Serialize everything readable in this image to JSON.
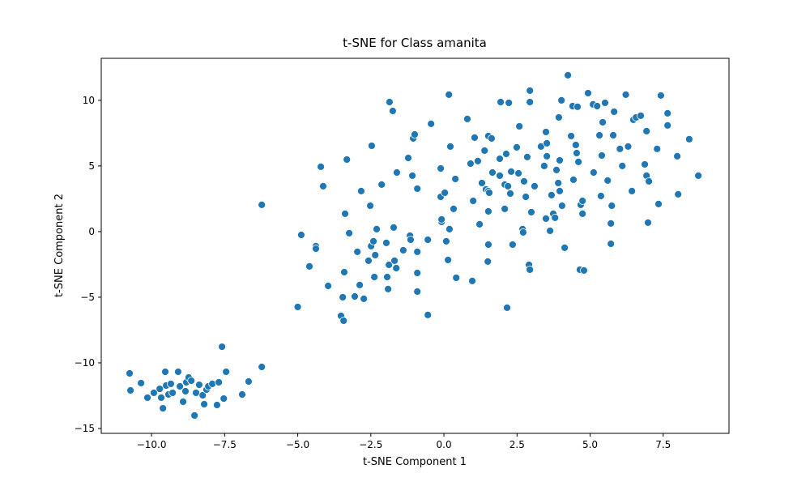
{
  "chart_data": {
    "type": "scatter",
    "title": "t-SNE for Class amanita",
    "x_label": "t-SNE Component 1",
    "y_label": "t-SNE Component 2",
    "xlim": [
      -11.72,
      9.75
    ],
    "ylim": [
      -15.37,
      13.2
    ],
    "xticks": [
      {
        "value": -10,
        "label": "−10.0"
      },
      {
        "value": -7.5,
        "label": "−7.5"
      },
      {
        "value": -5,
        "label": "−5.0"
      },
      {
        "value": -2.5,
        "label": "−2.5"
      },
      {
        "value": 0,
        "label": "0.0"
      },
      {
        "value": 2.5,
        "label": "2.5"
      },
      {
        "value": 5,
        "label": "5.0"
      },
      {
        "value": 7.5,
        "label": "7.5"
      }
    ],
    "yticks": [
      {
        "value": -15,
        "label": "−15"
      },
      {
        "value": -10,
        "label": "−10"
      },
      {
        "value": -5,
        "label": "−5"
      },
      0,
      5,
      10
    ],
    "grid": false,
    "series": [
      {
        "color": "#1f77b4",
        "x": [
          -10.75,
          -10.72,
          -10.36,
          -10.14,
          -9.92,
          -9.72,
          -9.67,
          -9.61,
          -9.53,
          -9.5,
          -9.42,
          -9.34,
          -9.28,
          -9.09,
          -9.03,
          -8.92,
          -8.84,
          -8.81,
          -8.73,
          -8.64,
          -8.53,
          -8.48,
          -8.37,
          -8.25,
          -8.2,
          -8.12,
          -8.06,
          -7.92,
          -7.76,
          -7.7,
          -7.59,
          -7.53,
          -7.45,
          -6.9,
          -6.68,
          -6.23,
          -6.23,
          -4.88,
          -5.0,
          -4.6,
          -4.38,
          -4.38,
          -4.21,
          -4.13,
          -3.96,
          -3.52,
          -3.43,
          -3.46,
          -3.41,
          -3.38,
          -3.32,
          -3.24,
          -3.05,
          -2.96,
          -2.88,
          -2.83,
          -2.74,
          -2.58,
          -2.52,
          -2.49,
          -2.47,
          -2.41,
          -2.38,
          -2.35,
          -2.3,
          -2.13,
          -1.97,
          -1.94,
          -1.91,
          -1.88,
          -1.86,
          -1.75,
          -1.72,
          -1.69,
          -1.63,
          -1.61,
          -1.39,
          -1.22,
          -1.16,
          -1.14,
          -1.08,
          -1.05,
          -1.0,
          -0.91,
          -0.91,
          -0.91,
          -0.91,
          -0.55,
          -0.55,
          -0.44,
          -0.11,
          -0.11,
          -0.08,
          -0.08,
          0.03,
          0.08,
          0.14,
          0.17,
          0.19,
          0.22,
          0.33,
          0.39,
          0.42,
          0.8,
          0.91,
          0.97,
          1.0,
          1.05,
          1.16,
          1.22,
          1.3,
          1.39,
          1.44,
          1.52,
          1.52,
          1.52,
          1.52,
          1.5,
          1.55,
          1.63,
          1.66,
          1.91,
          1.94,
          1.91,
          2.08,
          2.08,
          2.13,
          2.19,
          2.16,
          2.22,
          2.27,
          2.3,
          2.35,
          2.49,
          2.55,
          2.58,
          2.69,
          2.71,
          2.74,
          2.8,
          2.85,
          2.91,
          2.94,
          2.94,
          2.94,
          2.99,
          3.1,
          3.32,
          3.43,
          3.49,
          3.49,
          3.52,
          3.52,
          3.63,
          3.68,
          3.74,
          3.8,
          3.85,
          3.91,
          3.93,
          3.96,
          3.96,
          4.02,
          4.04,
          4.13,
          4.24,
          4.35,
          4.4,
          4.43,
          4.51,
          4.57,
          4.54,
          4.6,
          4.65,
          4.68,
          4.74,
          4.74,
          4.79,
          4.93,
          5.12,
          5.1,
          5.24,
          5.32,
          5.37,
          5.4,
          5.43,
          5.51,
          5.6,
          5.71,
          5.71,
          5.74,
          5.79,
          5.82,
          6.02,
          6.1,
          6.22,
          6.3,
          6.43,
          6.48,
          6.57,
          6.73,
          6.87,
          6.93,
          6.93,
          6.98,
          7.01,
          7.29,
          7.34,
          7.42,
          7.65,
          7.65,
          7.98,
          8.01,
          8.39,
          8.7
        ],
        "values": [
          -10.8,
          -12.1,
          -11.54,
          -12.65,
          -12.28,
          -11.98,
          -12.65,
          -13.46,
          -10.68,
          -11.73,
          -12.41,
          -11.6,
          -12.28,
          -10.68,
          -11.79,
          -12.96,
          -12.16,
          -11.48,
          -11.11,
          -11.36,
          -14.01,
          -12.28,
          -11.67,
          -12.47,
          -13.15,
          -12.04,
          -11.79,
          -11.6,
          -13.21,
          -11.48,
          -8.77,
          -12.72,
          -10.68,
          -12.41,
          -11.42,
          -10.31,
          2.04,
          -0.25,
          -5.74,
          -2.65,
          -1.11,
          -1.3,
          4.94,
          3.46,
          -4.14,
          -6.42,
          -6.79,
          -5.0,
          -3.09,
          1.36,
          5.49,
          -0.12,
          -4.94,
          -1.54,
          -4.07,
          3.09,
          -5.12,
          -2.22,
          1.97,
          -1.11,
          6.54,
          -0.74,
          -3.46,
          -1.79,
          0.19,
          3.58,
          -0.86,
          -3.46,
          -4.38,
          -2.53,
          9.87,
          9.19,
          0.31,
          -2.22,
          -2.78,
          4.5,
          -1.42,
          5.61,
          -0.31,
          -0.62,
          4.26,
          7.1,
          7.4,
          3.27,
          -4.57,
          -1.54,
          -3.15,
          -0.62,
          -6.35,
          8.21,
          4.81,
          2.65,
          0.74,
          0.93,
          2.96,
          -0.74,
          -2.16,
          10.43,
          0.19,
          6.48,
          1.73,
          4.01,
          -3.52,
          8.58,
          5.18,
          -3.76,
          2.34,
          7.16,
          5.37,
          0.56,
          3.7,
          6.17,
          3.21,
          7.28,
          3.09,
          1.54,
          -0.99,
          -2.28,
          2.96,
          7.1,
          4.5,
          4.26,
          9.87,
          5.55,
          1.73,
          3.58,
          5.92,
          3.46,
          -5.8,
          9.81,
          2.9,
          4.57,
          -0.99,
          6.42,
          4.44,
          8.02,
          0.19,
          -0.06,
          3.83,
          2.65,
          5.68,
          -2.53,
          -2.9,
          9.87,
          10.74,
          1.48,
          3.46,
          6.48,
          5.0,
          7.59,
          0.99,
          6.73,
          5.74,
          0.06,
          2.78,
          1.36,
          1.05,
          4.69,
          3.7,
          8.7,
          3.09,
          5.43,
          10.0,
          1.97,
          -1.23,
          11.91,
          7.28,
          9.56,
          3.95,
          6.6,
          9.51,
          5.98,
          5.31,
          -2.9,
          2.04,
          1.36,
          2.34,
          -2.96,
          10.55,
          4.5,
          9.69,
          9.56,
          7.34,
          2.71,
          5.8,
          8.33,
          9.81,
          3.89,
          0.62,
          -0.93,
          1.97,
          7.34,
          9.13,
          6.3,
          5.0,
          10.43,
          6.48,
          3.09,
          8.52,
          8.7,
          8.83,
          5.12,
          4.26,
          7.65,
          0.68,
          3.83,
          6.3,
          2.1,
          10.37,
          9.01,
          8.09,
          5.74,
          2.84,
          7.04,
          4.26
        ]
      }
    ]
  }
}
